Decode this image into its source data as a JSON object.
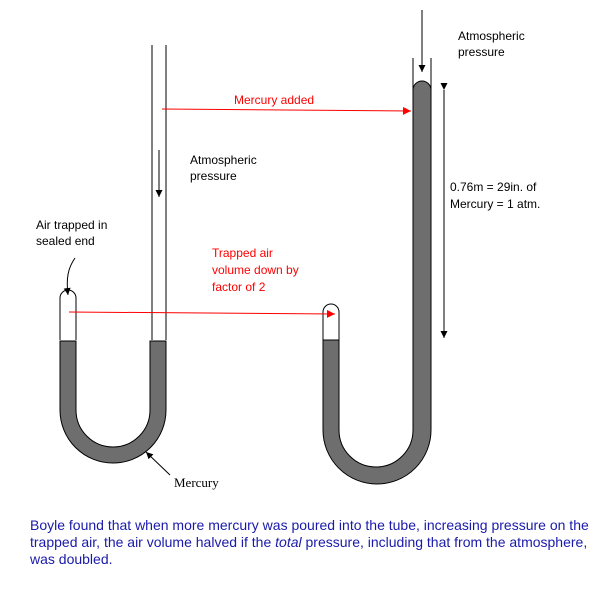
{
  "labels": {
    "atmospheric_pressure_right": [
      "Atmospheric",
      "pressure"
    ],
    "mercury_added": "Mercury added",
    "atmospheric_pressure_left": [
      "Atmospheric",
      "pressure"
    ],
    "mercury_column": [
      "0.76m = 29in. of",
      "Mercury = 1 atm."
    ],
    "air_trapped": [
      "Air trapped in",
      "sealed end"
    ],
    "trapped_air_volume": [
      "Trapped air",
      "volume down by",
      "factor of 2"
    ],
    "mercury": "Mercury"
  },
  "caption": {
    "before": "Boyle found that when more mercury was poured into the tube, increasing pressure on the trapped air, the air volume halved if the ",
    "emphasis": "total",
    "after": " pressure, including that from the atmosphere, was doubled."
  },
  "colors": {
    "mercury_fill": "#6e6e6e",
    "tube_outline": "#000000",
    "arrow_red": "#ff0000",
    "caption_text": "#1a1aaa"
  }
}
